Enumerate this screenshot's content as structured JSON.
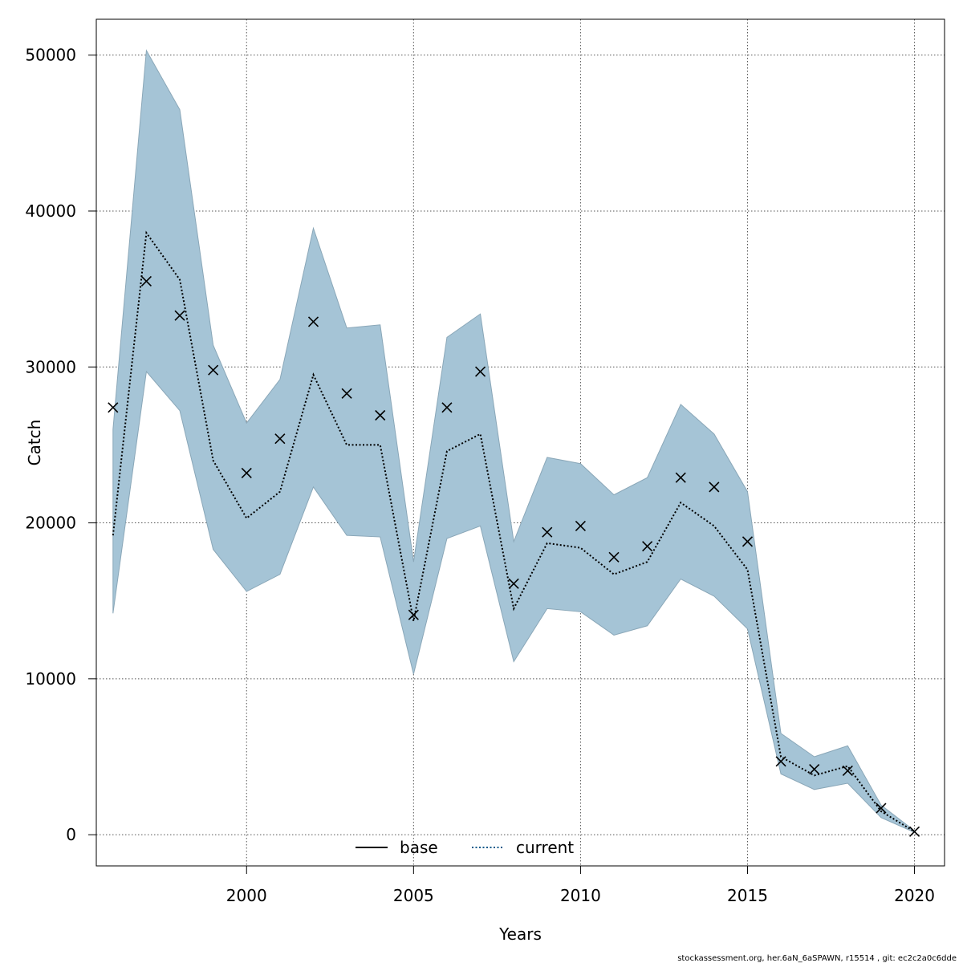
{
  "chart_data": {
    "type": "line",
    "xlabel": "Years",
    "ylabel": "Catch",
    "xlim": [
      1995.5,
      2020.9
    ],
    "ylim": [
      -2000,
      52300
    ],
    "x_ticks": [
      2000,
      2005,
      2010,
      2015,
      2020
    ],
    "y_ticks": [
      0,
      10000,
      20000,
      30000,
      40000,
      50000
    ],
    "grid": true,
    "legend_placement": "bottom-center",
    "legend": [
      {
        "label": "base",
        "style": "solid",
        "color": "#000000"
      },
      {
        "label": "current",
        "style": "dotted",
        "color": "#0b5a8a"
      }
    ],
    "band_color": "#a5c4d6",
    "x": [
      1996,
      1997,
      1998,
      1999,
      2000,
      2001,
      2002,
      2003,
      2004,
      2005,
      2006,
      2007,
      2008,
      2009,
      2010,
      2011,
      2012,
      2013,
      2014,
      2015,
      2016,
      2017,
      2018,
      2019,
      2020
    ],
    "series": [
      {
        "name": "current",
        "style": "dotted",
        "values": [
          19200,
          38600,
          35600,
          24000,
          20300,
          22000,
          29500,
          25000,
          25000,
          13700,
          24600,
          25700,
          14500,
          18700,
          18400,
          16700,
          17500,
          21300,
          19800,
          17000,
          5000,
          3800,
          4400,
          1500,
          200
        ]
      },
      {
        "name": "current band",
        "lower": [
          14200,
          29700,
          27200,
          18300,
          15600,
          16700,
          22300,
          19200,
          19100,
          10300,
          19000,
          19800,
          11100,
          14500,
          14300,
          12800,
          13400,
          16400,
          15300,
          13200,
          3900,
          2900,
          3300,
          1100,
          150
        ],
        "upper": [
          26000,
          50300,
          46500,
          31400,
          26400,
          29200,
          38900,
          32500,
          32700,
          17500,
          31900,
          33400,
          18800,
          24200,
          23800,
          21800,
          22900,
          27600,
          25700,
          22000,
          6500,
          5000,
          5700,
          1900,
          250
        ]
      },
      {
        "name": "observed",
        "style": "x-markers",
        "values": [
          27400,
          35500,
          33300,
          29800,
          23200,
          25400,
          32900,
          28300,
          26900,
          14100,
          27400,
          29700,
          16100,
          19400,
          19800,
          17800,
          18500,
          22900,
          22300,
          18800,
          4700,
          4200,
          4100,
          1700,
          200
        ]
      }
    ]
  },
  "footer": "stockassessment.org, her.6aN_6aSPAWN, r15514 , git: ec2c2a0c6dde"
}
